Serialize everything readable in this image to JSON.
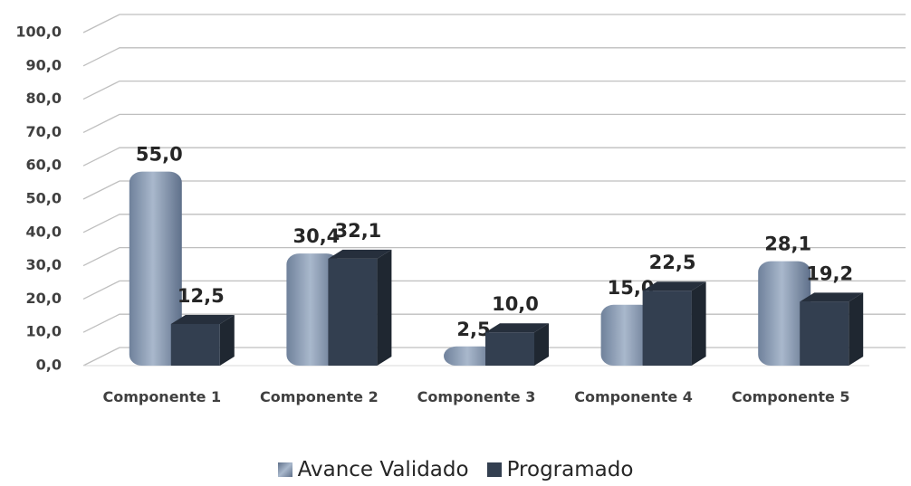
{
  "chart_data": {
    "type": "bar3d",
    "categories": [
      "Componente 1",
      "Componente 2",
      "Componente 3",
      "Componente 4",
      "Componente 5"
    ],
    "series": [
      {
        "name": "Avance Validado",
        "color": "#8496b0",
        "values": [
          55.0,
          30.4,
          2.5,
          15.0,
          28.1
        ],
        "value_labels": [
          "55,0",
          "30,4",
          "2,5",
          "15,0",
          "28,1"
        ]
      },
      {
        "name": "Programado",
        "color": "#333f50",
        "values": [
          12.5,
          32.1,
          10.0,
          22.5,
          19.2
        ],
        "value_labels": [
          "12,5",
          "32,1",
          "10,0",
          "22,5",
          "19,2"
        ]
      }
    ],
    "ylim": [
      0,
      100
    ],
    "yticks": [
      {
        "value": 0,
        "label": "0,0"
      },
      {
        "value": 10,
        "label": "10,0"
      },
      {
        "value": 20,
        "label": "20,0"
      },
      {
        "value": 30,
        "label": "30,0"
      },
      {
        "value": 40,
        "label": "40,0"
      },
      {
        "value": 50,
        "label": "50,0"
      },
      {
        "value": 60,
        "label": "60,0"
      },
      {
        "value": 70,
        "label": "70,0"
      },
      {
        "value": 80,
        "label": "80,0"
      },
      {
        "value": 90,
        "label": "90,0"
      },
      {
        "value": 100,
        "label": "100,0"
      }
    ],
    "grid": true,
    "legend": "bottom"
  }
}
